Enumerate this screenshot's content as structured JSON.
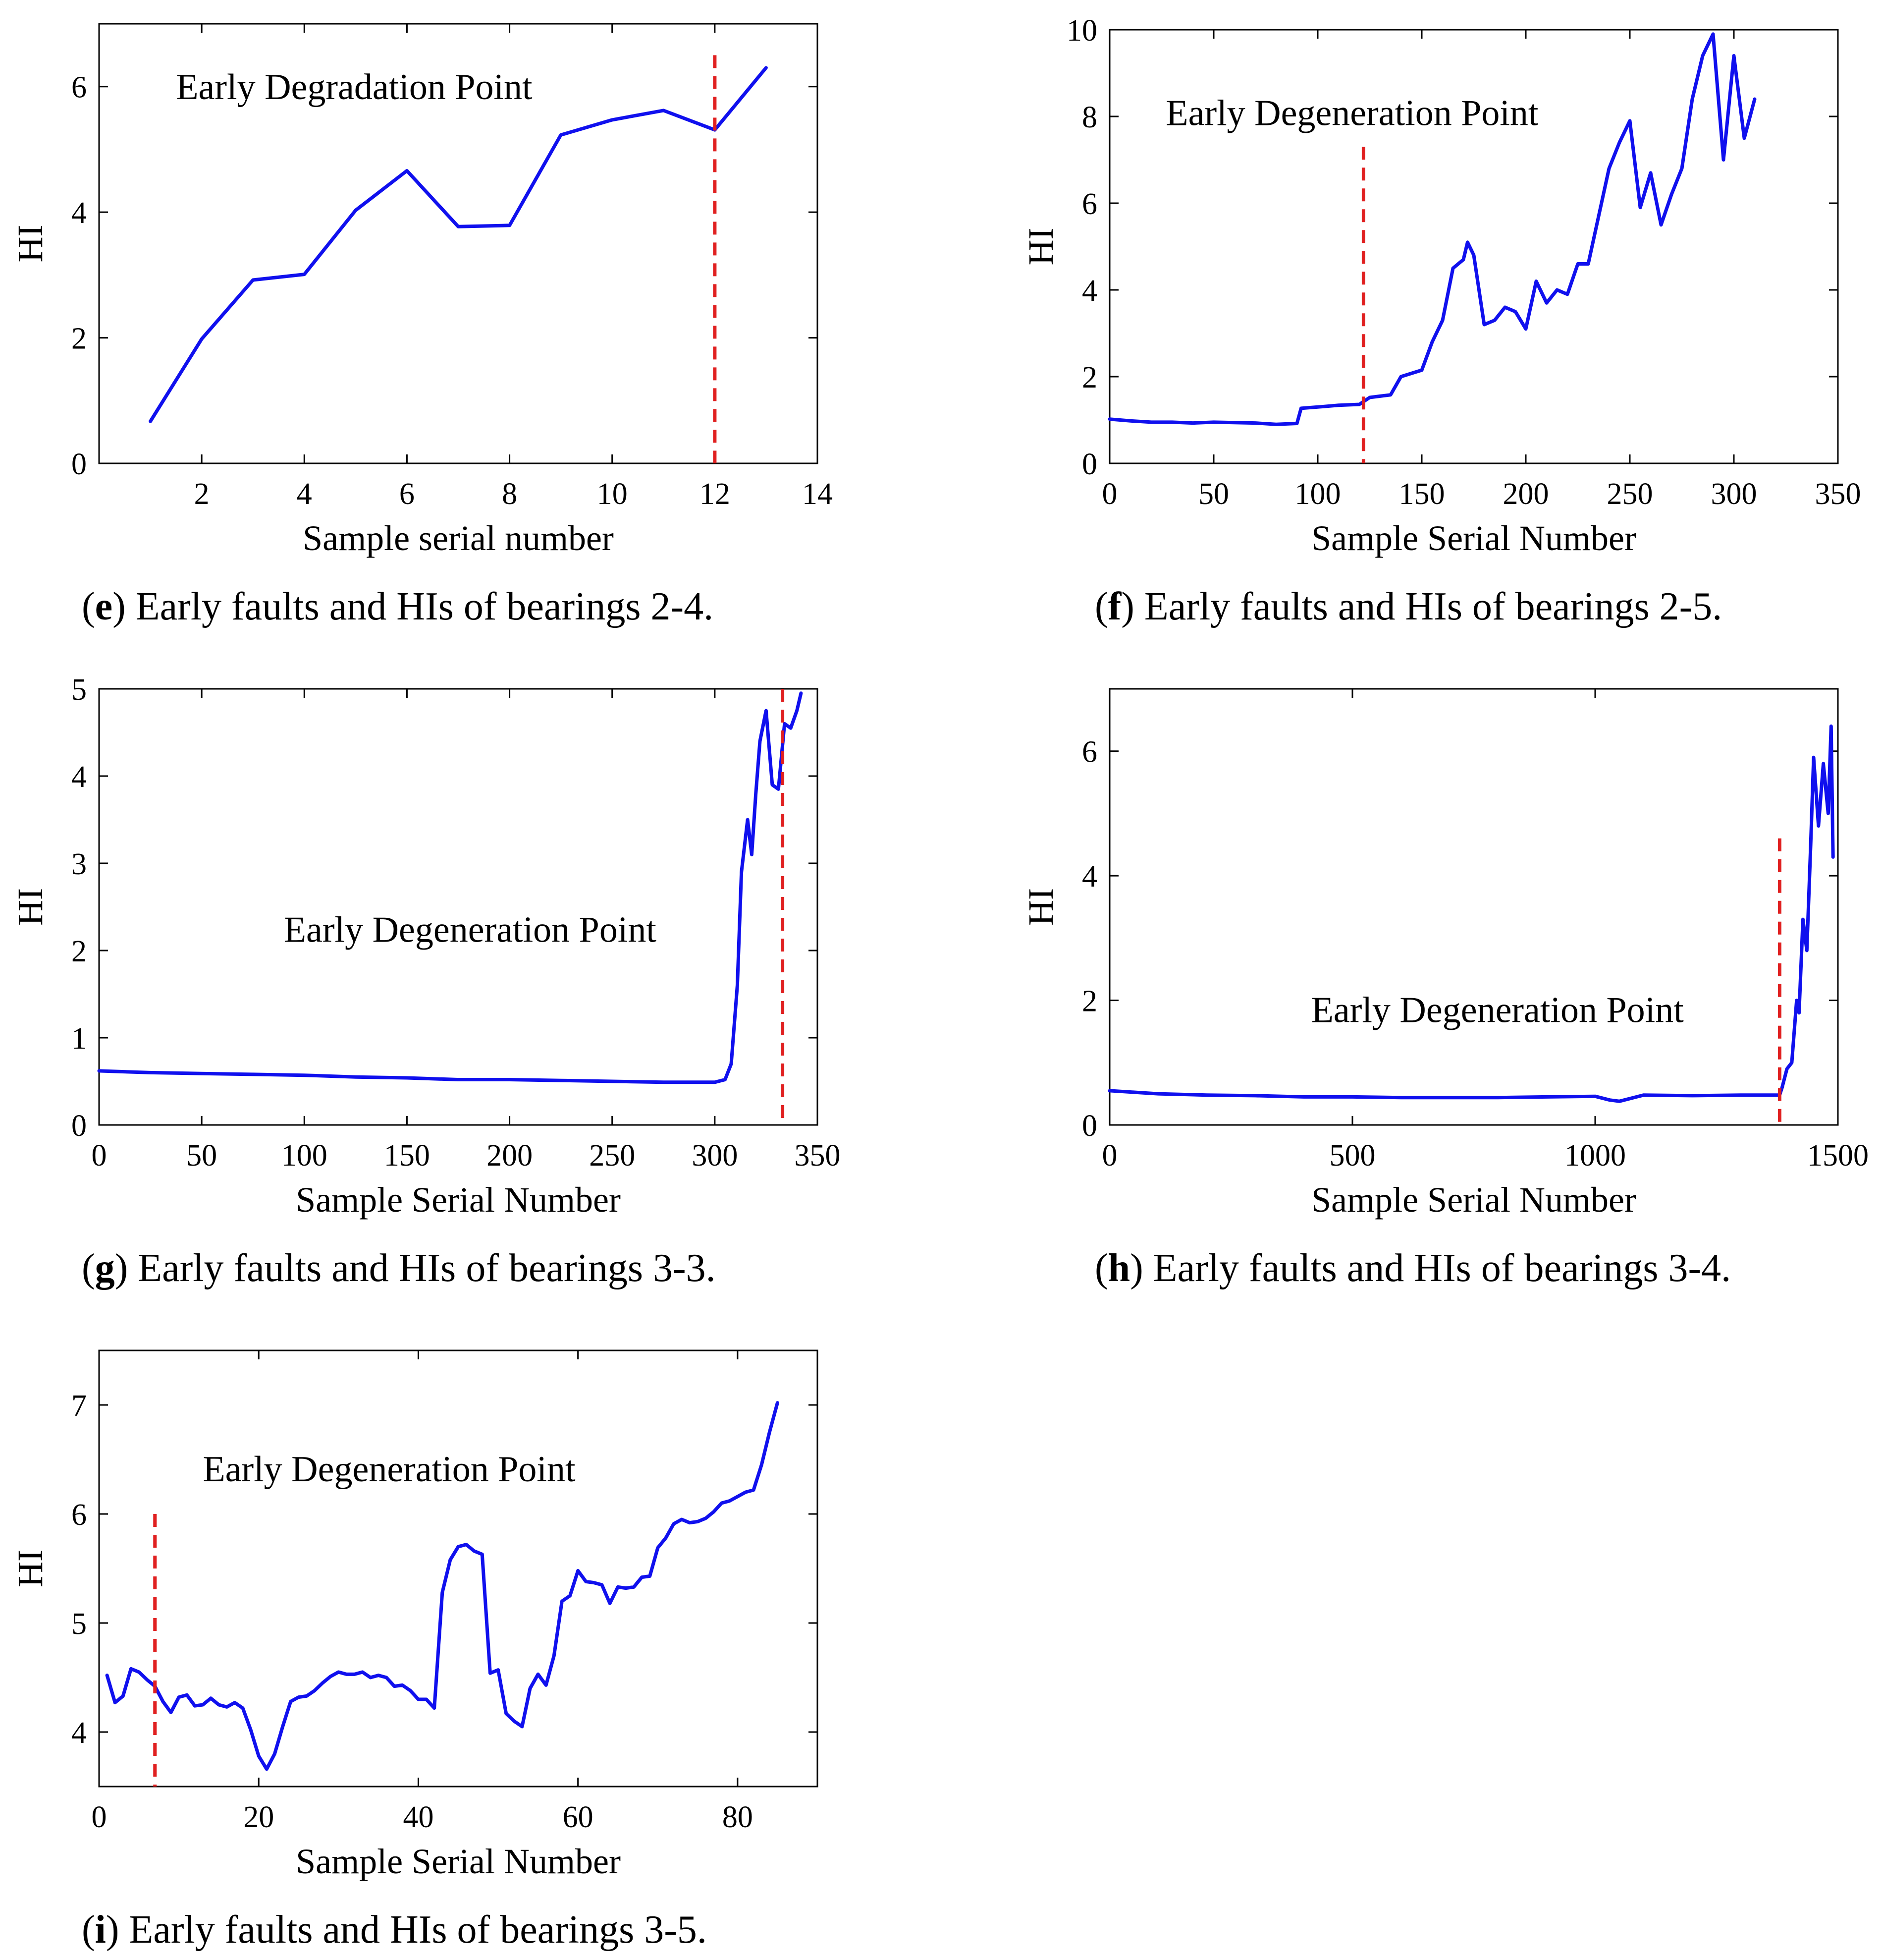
{
  "figure": {
    "title": "Early faults and HIs of bearings"
  },
  "colors": {
    "series": "#1010ee",
    "marker": "#e02020",
    "axis": "#000000"
  },
  "chart_data": [
    {
      "id": "e",
      "type": "line",
      "caption_letter": "e",
      "caption_text": "Early faults and HIs of bearings 2-4.",
      "xlabel": "Sample serial number",
      "ylabel": "HI",
      "annotation": "Early Degradation Point",
      "xlim": [
        0,
        14
      ],
      "ylim": [
        0,
        7
      ],
      "xticks": [
        2,
        4,
        6,
        8,
        10,
        12,
        14
      ],
      "yticks": [
        0,
        2,
        4,
        6
      ],
      "marker_x": 12,
      "marker_y_top": 6.5,
      "annotation_pos": [
        1.5,
        5.8
      ],
      "series": {
        "name": "HI",
        "x": [
          1,
          2,
          3,
          4,
          5,
          6,
          7,
          8,
          9,
          10,
          11,
          12,
          13
        ],
        "y": [
          0.67,
          1.98,
          2.92,
          3.01,
          4.03,
          4.66,
          3.77,
          3.79,
          5.23,
          5.47,
          5.62,
          5.31,
          6.3
        ]
      }
    },
    {
      "id": "f",
      "type": "line",
      "caption_letter": "f",
      "caption_text": "Early faults and HIs of bearings 2-5.",
      "xlabel": "Sample Serial Number",
      "ylabel": "HI",
      "annotation": "Early Degeneration Point",
      "xlim": [
        0,
        350
      ],
      "ylim": [
        0,
        10
      ],
      "xticks": [
        0,
        50,
        100,
        150,
        200,
        250,
        300,
        350
      ],
      "yticks": [
        0,
        2,
        4,
        6,
        8,
        10
      ],
      "marker_x": 122,
      "marker_y_top": 7.3,
      "annotation_pos": [
        27,
        7.8
      ],
      "series": {
        "name": "HI",
        "x": [
          0,
          10,
          20,
          30,
          40,
          50,
          60,
          70,
          80,
          90,
          92,
          100,
          110,
          120,
          125,
          130,
          135,
          140,
          150,
          155,
          160,
          165,
          170,
          172,
          175,
          180,
          185,
          190,
          195,
          200,
          205,
          210,
          215,
          220,
          225,
          230,
          235,
          240,
          245,
          250,
          255,
          260,
          265,
          270,
          275,
          280,
          285,
          290,
          295,
          300,
          305,
          310
        ],
        "y": [
          1.02,
          0.98,
          0.95,
          0.95,
          0.93,
          0.95,
          0.94,
          0.93,
          0.9,
          0.92,
          1.27,
          1.3,
          1.34,
          1.36,
          1.52,
          1.55,
          1.58,
          2.0,
          2.15,
          2.8,
          3.3,
          4.5,
          4.7,
          5.1,
          4.8,
          3.2,
          3.3,
          3.6,
          3.5,
          3.1,
          4.2,
          3.7,
          4.0,
          3.9,
          4.6,
          4.6,
          5.7,
          6.8,
          7.4,
          7.9,
          5.9,
          6.7,
          5.5,
          6.2,
          6.8,
          8.4,
          9.4,
          9.9,
          7.0,
          9.4,
          7.5,
          8.4
        ]
      }
    },
    {
      "id": "g",
      "type": "line",
      "caption_letter": "g",
      "caption_text": "Early faults and HIs of bearings 3-3.",
      "xlabel": "Sample Serial Number",
      "ylabel": "HI",
      "annotation": "Early Degeneration Point",
      "xlim": [
        0,
        350
      ],
      "ylim": [
        0,
        5
      ],
      "xticks": [
        0,
        50,
        100,
        150,
        200,
        250,
        300,
        350
      ],
      "yticks": [
        0,
        1,
        2,
        3,
        4,
        5
      ],
      "marker_x": 333,
      "marker_y_top": 5,
      "annotation_pos": [
        90,
        2.1
      ],
      "series": {
        "name": "HI",
        "x": [
          0,
          25,
          50,
          75,
          100,
          125,
          150,
          175,
          200,
          225,
          250,
          275,
          300,
          305,
          308,
          311,
          313,
          316,
          318,
          320,
          322,
          325,
          328,
          331,
          334,
          337,
          340,
          342
        ],
        "y": [
          0.62,
          0.6,
          0.59,
          0.58,
          0.57,
          0.55,
          0.54,
          0.52,
          0.52,
          0.51,
          0.5,
          0.49,
          0.49,
          0.52,
          0.7,
          1.6,
          2.9,
          3.5,
          3.1,
          3.8,
          4.4,
          4.75,
          3.9,
          3.85,
          4.6,
          4.55,
          4.75,
          4.95
        ]
      }
    },
    {
      "id": "h",
      "type": "line",
      "caption_letter": "h",
      "caption_text": "Early faults and HIs of bearings 3-4.",
      "xlabel": "Sample Serial Number",
      "ylabel": "HI",
      "annotation": "Early Degeneration Point",
      "xlim": [
        0,
        1500
      ],
      "ylim": [
        0,
        7
      ],
      "xticks": [
        0,
        500,
        1000,
        1500
      ],
      "yticks": [
        0,
        2,
        4,
        6
      ],
      "marker_x": 1380,
      "marker_y_top": 4.6,
      "annotation_pos": [
        415,
        1.65
      ],
      "series": {
        "name": "HI",
        "x": [
          0,
          100,
          200,
          300,
          400,
          500,
          600,
          700,
          800,
          900,
          1000,
          1030,
          1050,
          1070,
          1100,
          1200,
          1300,
          1380,
          1385,
          1395,
          1405,
          1415,
          1420,
          1428,
          1436,
          1444,
          1450,
          1460,
          1470,
          1480,
          1486,
          1490
        ],
        "y": [
          0.55,
          0.5,
          0.48,
          0.47,
          0.45,
          0.45,
          0.44,
          0.44,
          0.44,
          0.45,
          0.46,
          0.4,
          0.38,
          0.42,
          0.48,
          0.47,
          0.48,
          0.48,
          0.6,
          0.9,
          1.0,
          2.0,
          1.8,
          3.3,
          2.8,
          4.5,
          5.9,
          4.8,
          5.8,
          5.0,
          6.4,
          4.3
        ]
      }
    },
    {
      "id": "i",
      "type": "line",
      "caption_letter": "i",
      "caption_text": "Early faults and HIs of bearings 3-5.",
      "xlabel": "Sample Serial Number",
      "ylabel": "HI",
      "annotation": "Early Degeneration Point",
      "xlim": [
        0,
        90
      ],
      "ylim": [
        3.5,
        7.5
      ],
      "xticks": [
        0,
        20,
        40,
        60,
        80
      ],
      "yticks": [
        4,
        5,
        6,
        7
      ],
      "marker_x": 7,
      "marker_y_top": 6,
      "annotation_pos": [
        13,
        6.3
      ],
      "series": {
        "name": "HI",
        "x": [
          1,
          2,
          3,
          4,
          5,
          6,
          7,
          8,
          9,
          10,
          11,
          12,
          13,
          14,
          15,
          16,
          17,
          18,
          19,
          20,
          21,
          22,
          23,
          24,
          25,
          26,
          27,
          28,
          29,
          30,
          31,
          32,
          33,
          34,
          35,
          36,
          37,
          38,
          39,
          40,
          41,
          42,
          43,
          44,
          45,
          46,
          47,
          48,
          49,
          50,
          51,
          52,
          53,
          54,
          55,
          56,
          57,
          58,
          59,
          60,
          61,
          62,
          63,
          64,
          65,
          66,
          67,
          68,
          69,
          70,
          71,
          72,
          73,
          74,
          75,
          76,
          77,
          78,
          79,
          80,
          81,
          82,
          83,
          84,
          85
        ],
        "y": [
          4.52,
          4.27,
          4.33,
          4.58,
          4.55,
          4.48,
          4.42,
          4.28,
          4.18,
          4.32,
          4.34,
          4.24,
          4.25,
          4.31,
          4.25,
          4.23,
          4.27,
          4.22,
          4.02,
          3.78,
          3.66,
          3.8,
          4.05,
          4.28,
          4.32,
          4.33,
          4.38,
          4.45,
          4.51,
          4.55,
          4.53,
          4.53,
          4.55,
          4.5,
          4.52,
          4.5,
          4.42,
          4.43,
          4.38,
          4.3,
          4.3,
          4.22,
          5.28,
          5.58,
          5.7,
          5.72,
          5.66,
          5.63,
          4.54,
          4.57,
          4.17,
          4.1,
          4.05,
          4.4,
          4.53,
          4.43,
          4.7,
          5.2,
          5.25,
          5.48,
          5.38,
          5.37,
          5.35,
          5.18,
          5.33,
          5.32,
          5.33,
          5.42,
          5.43,
          5.69,
          5.78,
          5.91,
          5.95,
          5.92,
          5.93,
          5.96,
          6.02,
          6.1,
          6.12,
          6.16,
          6.2,
          6.22,
          6.45,
          6.75,
          7.02
        ]
      }
    }
  ]
}
